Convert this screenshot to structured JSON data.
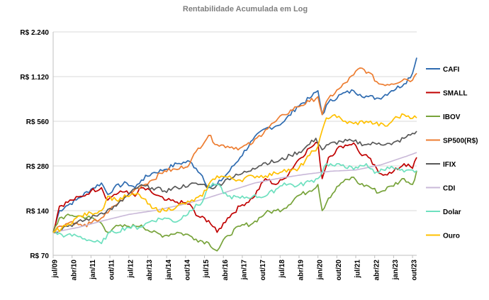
{
  "chart_data": {
    "type": "line",
    "title": "Rentabilidade Acumulada em Log",
    "y_scale": "log",
    "ylim": [
      70,
      2240
    ],
    "y_ticks": [
      {
        "value": 70,
        "label": "R$ 70"
      },
      {
        "value": 140,
        "label": "R$ 140"
      },
      {
        "value": 280,
        "label": "R$ 280"
      },
      {
        "value": 560,
        "label": "R$ 560"
      },
      {
        "value": 1120,
        "label": "R$ 1.120"
      },
      {
        "value": 2240,
        "label": "R$ 2.240"
      }
    ],
    "x_range": [
      "2009-07",
      "2023-12"
    ],
    "x_ticks": [
      "jul/09",
      "abr/10",
      "jan/11",
      "out/11",
      "jul/12",
      "abr/13",
      "jan/14",
      "out/14",
      "jul/15",
      "abr/16",
      "jan/17",
      "out/17",
      "jul/18",
      "abr/19",
      "jan/20",
      "out/20",
      "jul/21",
      "abr/22",
      "jan/23",
      "out/23"
    ],
    "grid": "horizontal",
    "legend_position": "right",
    "series": [
      {
        "name": "CAFI",
        "color": "#2e6bb0",
        "points": [
          [
            "2009-07",
            100
          ],
          [
            "2009-10",
            140
          ],
          [
            "2010-01",
            150
          ],
          [
            "2010-06",
            165
          ],
          [
            "2011-01",
            195
          ],
          [
            "2011-06",
            215
          ],
          [
            "2011-09",
            180
          ],
          [
            "2011-12",
            200
          ],
          [
            "2012-06",
            215
          ],
          [
            "2012-10",
            200
          ],
          [
            "2013-01",
            225
          ],
          [
            "2013-06",
            250
          ],
          [
            "2013-12",
            265
          ],
          [
            "2014-06",
            290
          ],
          [
            "2014-12",
            300
          ],
          [
            "2015-03",
            270
          ],
          [
            "2015-06",
            240
          ],
          [
            "2015-09",
            200
          ],
          [
            "2016-01",
            210
          ],
          [
            "2016-06",
            250
          ],
          [
            "2016-12",
            320
          ],
          [
            "2017-06",
            420
          ],
          [
            "2017-12",
            500
          ],
          [
            "2018-05",
            520
          ],
          [
            "2018-09",
            560
          ],
          [
            "2019-03",
            700
          ],
          [
            "2019-09",
            800
          ],
          [
            "2020-01",
            900
          ],
          [
            "2020-03",
            620
          ],
          [
            "2020-06",
            750
          ],
          [
            "2020-12",
            850
          ],
          [
            "2021-06",
            900
          ],
          [
            "2021-09",
            850
          ],
          [
            "2022-01",
            820
          ],
          [
            "2022-06",
            800
          ],
          [
            "2022-12",
            900
          ],
          [
            "2023-06",
            1000
          ],
          [
            "2023-10",
            1180
          ],
          [
            "2023-12",
            1500
          ]
        ]
      },
      {
        "name": "SMALL",
        "color": "#c00000",
        "points": [
          [
            "2009-07",
            100
          ],
          [
            "2009-10",
            150
          ],
          [
            "2010-04",
            165
          ],
          [
            "2010-09",
            175
          ],
          [
            "2011-01",
            190
          ],
          [
            "2011-06",
            200
          ],
          [
            "2011-09",
            165
          ],
          [
            "2011-12",
            180
          ],
          [
            "2012-06",
            190
          ],
          [
            "2012-10",
            175
          ],
          [
            "2013-01",
            200
          ],
          [
            "2013-06",
            185
          ],
          [
            "2013-12",
            165
          ],
          [
            "2014-06",
            160
          ],
          [
            "2014-12",
            155
          ],
          [
            "2015-03",
            130
          ],
          [
            "2015-09",
            120
          ],
          [
            "2016-01",
            100
          ],
          [
            "2016-06",
            125
          ],
          [
            "2016-12",
            150
          ],
          [
            "2017-06",
            170
          ],
          [
            "2017-12",
            230
          ],
          [
            "2018-05",
            210
          ],
          [
            "2018-09",
            230
          ],
          [
            "2019-03",
            300
          ],
          [
            "2019-09",
            370
          ],
          [
            "2020-01",
            400
          ],
          [
            "2020-03",
            230
          ],
          [
            "2020-06",
            320
          ],
          [
            "2020-12",
            380
          ],
          [
            "2021-06",
            400
          ],
          [
            "2021-09",
            340
          ],
          [
            "2022-01",
            320
          ],
          [
            "2022-06",
            250
          ],
          [
            "2022-12",
            250
          ],
          [
            "2023-06",
            290
          ],
          [
            "2023-10",
            270
          ],
          [
            "2023-12",
            320
          ]
        ]
      },
      {
        "name": "IBOV",
        "color": "#77a33a",
        "points": [
          [
            "2009-07",
            100
          ],
          [
            "2009-10",
            125
          ],
          [
            "2010-04",
            130
          ],
          [
            "2010-09",
            128
          ],
          [
            "2011-01",
            125
          ],
          [
            "2011-06",
            115
          ],
          [
            "2011-09",
            100
          ],
          [
            "2011-12",
            108
          ],
          [
            "2012-06",
            110
          ],
          [
            "2012-10",
            110
          ],
          [
            "2013-01",
            112
          ],
          [
            "2013-06",
            100
          ],
          [
            "2013-12",
            95
          ],
          [
            "2014-06",
            100
          ],
          [
            "2014-12",
            95
          ],
          [
            "2015-03",
            90
          ],
          [
            "2015-09",
            85
          ],
          [
            "2016-01",
            75
          ],
          [
            "2016-06",
            95
          ],
          [
            "2016-12",
            110
          ],
          [
            "2017-06",
            115
          ],
          [
            "2017-12",
            135
          ],
          [
            "2018-05",
            140
          ],
          [
            "2018-09",
            145
          ],
          [
            "2019-03",
            175
          ],
          [
            "2019-09",
            190
          ],
          [
            "2020-01",
            210
          ],
          [
            "2020-03",
            140
          ],
          [
            "2020-06",
            170
          ],
          [
            "2020-12",
            215
          ],
          [
            "2021-06",
            235
          ],
          [
            "2021-09",
            210
          ],
          [
            "2022-01",
            205
          ],
          [
            "2022-06",
            185
          ],
          [
            "2022-12",
            205
          ],
          [
            "2023-06",
            230
          ],
          [
            "2023-10",
            210
          ],
          [
            "2023-12",
            260
          ]
        ]
      },
      {
        "name": "SP500(R$)",
        "color": "#ed7d31",
        "points": [
          [
            "2009-07",
            100
          ],
          [
            "2009-10",
            110
          ],
          [
            "2010-04",
            118
          ],
          [
            "2010-09",
            110
          ],
          [
            "2011-01",
            115
          ],
          [
            "2011-06",
            125
          ],
          [
            "2011-09",
            135
          ],
          [
            "2011-12",
            150
          ],
          [
            "2012-06",
            175
          ],
          [
            "2012-10",
            195
          ],
          [
            "2013-01",
            205
          ],
          [
            "2013-06",
            225
          ],
          [
            "2013-12",
            260
          ],
          [
            "2014-06",
            265
          ],
          [
            "2014-12",
            290
          ],
          [
            "2015-03",
            350
          ],
          [
            "2015-09",
            450
          ],
          [
            "2016-01",
            390
          ],
          [
            "2016-06",
            380
          ],
          [
            "2016-12",
            370
          ],
          [
            "2017-06",
            400
          ],
          [
            "2017-12",
            490
          ],
          [
            "2018-05",
            560
          ],
          [
            "2018-09",
            620
          ],
          [
            "2019-03",
            700
          ],
          [
            "2019-09",
            760
          ],
          [
            "2020-01",
            820
          ],
          [
            "2020-03",
            620
          ],
          [
            "2020-06",
            800
          ],
          [
            "2020-12",
            950
          ],
          [
            "2021-06",
            1150
          ],
          [
            "2021-09",
            1280
          ],
          [
            "2022-01",
            1200
          ],
          [
            "2022-06",
            1000
          ],
          [
            "2022-12",
            1000
          ],
          [
            "2023-06",
            1080
          ],
          [
            "2023-10",
            1060
          ],
          [
            "2023-12",
            1180
          ]
        ]
      },
      {
        "name": "IFIX",
        "color": "#595959",
        "points": [
          [
            "2009-07",
            100
          ],
          [
            "2010-01",
            110
          ],
          [
            "2010-06",
            115
          ],
          [
            "2011-01",
            125
          ],
          [
            "2011-06",
            135
          ],
          [
            "2012-01",
            150
          ],
          [
            "2012-06",
            175
          ],
          [
            "2012-12",
            205
          ],
          [
            "2013-06",
            200
          ],
          [
            "2013-12",
            190
          ],
          [
            "2014-06",
            200
          ],
          [
            "2014-12",
            210
          ],
          [
            "2015-06",
            210
          ],
          [
            "2015-12",
            200
          ],
          [
            "2016-06",
            230
          ],
          [
            "2016-12",
            245
          ],
          [
            "2017-06",
            270
          ],
          [
            "2017-12",
            295
          ],
          [
            "2018-06",
            300
          ],
          [
            "2018-12",
            330
          ],
          [
            "2019-06",
            360
          ],
          [
            "2019-12",
            430
          ],
          [
            "2020-03",
            360
          ],
          [
            "2020-06",
            390
          ],
          [
            "2020-12",
            410
          ],
          [
            "2021-06",
            410
          ],
          [
            "2021-12",
            390
          ],
          [
            "2022-06",
            400
          ],
          [
            "2022-12",
            390
          ],
          [
            "2023-06",
            430
          ],
          [
            "2023-12",
            480
          ]
        ]
      },
      {
        "name": "CDI",
        "color": "#c9b8d8",
        "points": [
          [
            "2009-07",
            100
          ],
          [
            "2010-07",
            108
          ],
          [
            "2011-07",
            120
          ],
          [
            "2012-07",
            132
          ],
          [
            "2013-07",
            140
          ],
          [
            "2014-07",
            152
          ],
          [
            "2015-07",
            168
          ],
          [
            "2016-07",
            190
          ],
          [
            "2017-07",
            215
          ],
          [
            "2018-07",
            232
          ],
          [
            "2019-07",
            246
          ],
          [
            "2020-07",
            258
          ],
          [
            "2021-07",
            263
          ],
          [
            "2022-07",
            285
          ],
          [
            "2023-07",
            325
          ],
          [
            "2023-12",
            345
          ]
        ]
      },
      {
        "name": "Dolar",
        "color": "#6ee0bf",
        "points": [
          [
            "2009-07",
            100
          ],
          [
            "2010-01",
            95
          ],
          [
            "2010-06",
            95
          ],
          [
            "2011-01",
            88
          ],
          [
            "2011-06",
            84
          ],
          [
            "2011-09",
            98
          ],
          [
            "2011-12",
            100
          ],
          [
            "2012-06",
            108
          ],
          [
            "2012-12",
            108
          ],
          [
            "2013-06",
            120
          ],
          [
            "2013-12",
            125
          ],
          [
            "2014-06",
            118
          ],
          [
            "2014-12",
            140
          ],
          [
            "2015-06",
            160
          ],
          [
            "2015-09",
            205
          ],
          [
            "2016-01",
            210
          ],
          [
            "2016-06",
            175
          ],
          [
            "2016-12",
            170
          ],
          [
            "2017-06",
            175
          ],
          [
            "2017-12",
            175
          ],
          [
            "2018-05",
            195
          ],
          [
            "2018-09",
            215
          ],
          [
            "2019-03",
            205
          ],
          [
            "2019-09",
            220
          ],
          [
            "2020-01",
            230
          ],
          [
            "2020-05",
            290
          ],
          [
            "2020-09",
            280
          ],
          [
            "2021-01",
            285
          ],
          [
            "2021-06",
            265
          ],
          [
            "2021-12",
            290
          ],
          [
            "2022-04",
            250
          ],
          [
            "2022-10",
            275
          ],
          [
            "2023-01",
            270
          ],
          [
            "2023-06",
            255
          ],
          [
            "2023-12",
            260
          ]
        ]
      },
      {
        "name": "Ouro",
        "color": "#ffc000",
        "points": [
          [
            "2009-07",
            100
          ],
          [
            "2010-01",
            110
          ],
          [
            "2010-06",
            125
          ],
          [
            "2011-01",
            135
          ],
          [
            "2011-06",
            140
          ],
          [
            "2011-09",
            175
          ],
          [
            "2012-01",
            165
          ],
          [
            "2012-06",
            175
          ],
          [
            "2012-12",
            180
          ],
          [
            "2013-06",
            145
          ],
          [
            "2013-12",
            140
          ],
          [
            "2014-06",
            150
          ],
          [
            "2014-12",
            160
          ],
          [
            "2015-06",
            175
          ],
          [
            "2015-09",
            210
          ],
          [
            "2016-01",
            240
          ],
          [
            "2016-06",
            235
          ],
          [
            "2016-12",
            225
          ],
          [
            "2017-06",
            240
          ],
          [
            "2017-12",
            240
          ],
          [
            "2018-05",
            250
          ],
          [
            "2018-09",
            265
          ],
          [
            "2019-03",
            260
          ],
          [
            "2019-09",
            330
          ],
          [
            "2020-01",
            380
          ],
          [
            "2020-05",
            590
          ],
          [
            "2020-09",
            620
          ],
          [
            "2021-01",
            560
          ],
          [
            "2021-06",
            540
          ],
          [
            "2021-12",
            560
          ],
          [
            "2022-04",
            540
          ],
          [
            "2022-10",
            520
          ],
          [
            "2023-01",
            580
          ],
          [
            "2023-06",
            620
          ],
          [
            "2023-12",
            590
          ]
        ]
      }
    ]
  }
}
